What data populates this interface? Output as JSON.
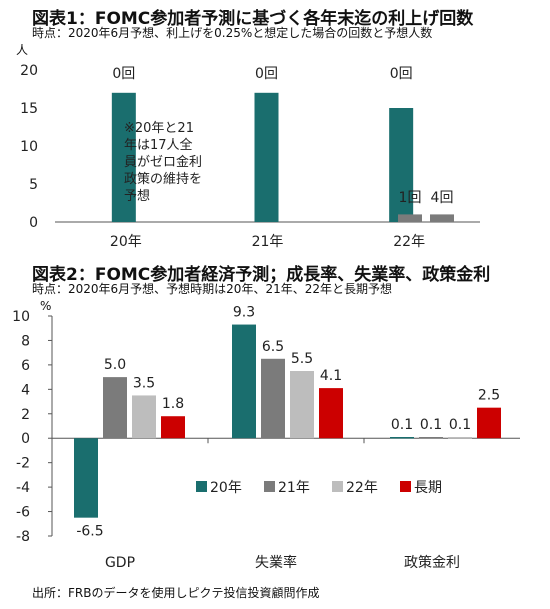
{
  "chart1": {
    "title": "図表1：FOMC参加者予測に基づく各年末迄の利上げ回数",
    "subtitle": "時点：2020年6月予想、利上げを0.25%と想定した場合の回数と予想人数",
    "unit": "人",
    "note": [
      "※20年と21",
      "年は17人全",
      "員がゼロ金利",
      "政策の維持を",
      "予想"
    ]
  },
  "chart2": {
    "title": "図表2：FOMC参加者経済予測；成長率、失業率、政策金利",
    "subtitle": "時点：2020年6月予想、予想時期は20年、21年、22年と長期予想",
    "unit": "%"
  },
  "source": "出所：FRBのデータを使用しピクテ投信投資顧問作成",
  "colors": {
    "teal": "#1a6e6e",
    "gray_dark": "#7b7b7b",
    "gray_light": "#bdbdbd",
    "red": "#cc0000",
    "axis": "#555555",
    "grid": "#cccccc"
  },
  "chart_data": [
    {
      "type": "bar",
      "categories": [
        "20年",
        "21年",
        "22年"
      ],
      "ylim": [
        0,
        20
      ],
      "yticks": [
        0,
        5,
        10,
        15,
        20
      ],
      "series": [
        {
          "label": "0回",
          "values": [
            17,
            17,
            15
          ],
          "color": "#1a6e6e"
        },
        {
          "label": "1回",
          "values": [
            0,
            0,
            1
          ],
          "color": "#7b7b7b"
        },
        {
          "label": "4回",
          "values": [
            0,
            0,
            1
          ],
          "color": "#7b7b7b"
        }
      ]
    },
    {
      "type": "bar",
      "categories": [
        "GDP",
        "失業率",
        "政策金利"
      ],
      "ylim": [
        -8,
        10
      ],
      "yticks": [
        -8,
        -6,
        -4,
        -2,
        0,
        2,
        4,
        6,
        8,
        10
      ],
      "legend_position": "center",
      "series": [
        {
          "name": "20年",
          "values": [
            -6.5,
            9.3,
            0.1
          ],
          "labels": [
            "-6.5",
            "9.3",
            ""
          ],
          "color": "#1a6e6e"
        },
        {
          "name": "21年",
          "values": [
            5.0,
            6.5,
            0.1
          ],
          "labels": [
            "5.0",
            "6.5",
            "0.1"
          ],
          "color": "#7b7b7b"
        },
        {
          "name": "22年",
          "values": [
            3.5,
            5.5,
            0.1
          ],
          "labels": [
            "3.5",
            "5.5",
            "0.1"
          ],
          "color": "#bdbdbd"
        },
        {
          "name": "長期",
          "values": [
            1.8,
            4.1,
            2.5
          ],
          "labels": [
            "1.8",
            "4.1",
            "2.5"
          ],
          "color": "#cc0000"
        }
      ],
      "extra_labels": [
        {
          "text": "0.1",
          "category": 2
        }
      ]
    }
  ]
}
